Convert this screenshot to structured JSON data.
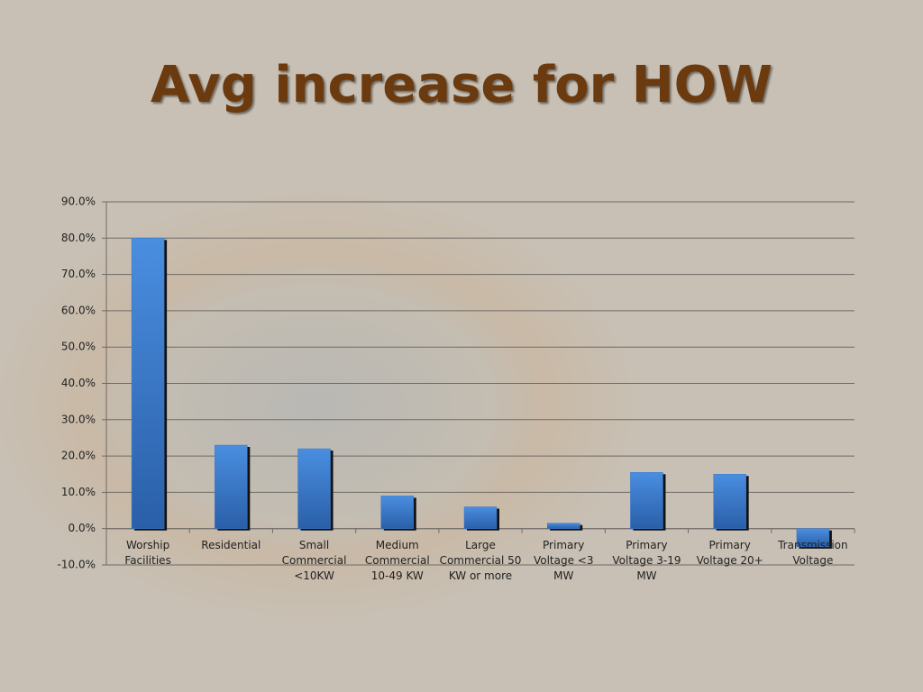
{
  "chart_data": {
    "type": "bar",
    "title": "Avg increase for HOW",
    "categories": [
      "Worship Facilities",
      "Residential",
      "Small Commercial <10KW",
      "Medium Commercial 10-49 KW",
      "Large Commercial 50 KW or more",
      "Primary Voltage <3 MW",
      "Primary Voltage 3-19 MW",
      "Primary Voltage 20+",
      "Transmission Voltage"
    ],
    "values": [
      80.0,
      23.0,
      22.0,
      9.0,
      6.0,
      1.5,
      15.5,
      15.0,
      -5.0
    ],
    "color": "#3a78c9",
    "ylim": [
      -10,
      90
    ],
    "yticks": [
      {
        "value": -10,
        "label": "-10.0%"
      },
      {
        "value": 0,
        "label": "0.0%"
      },
      {
        "value": 10,
        "label": "10.0%"
      },
      {
        "value": 20,
        "label": "20.0%"
      },
      {
        "value": 30,
        "label": "30.0%"
      },
      {
        "value": 40,
        "label": "40.0%"
      },
      {
        "value": 50,
        "label": "50.0%"
      },
      {
        "value": 60,
        "label": "60.0%"
      },
      {
        "value": 70,
        "label": "70.0%"
      },
      {
        "value": 80,
        "label": "80.0%"
      },
      {
        "value": 90,
        "label": "90.0%"
      }
    ],
    "grid": true
  }
}
